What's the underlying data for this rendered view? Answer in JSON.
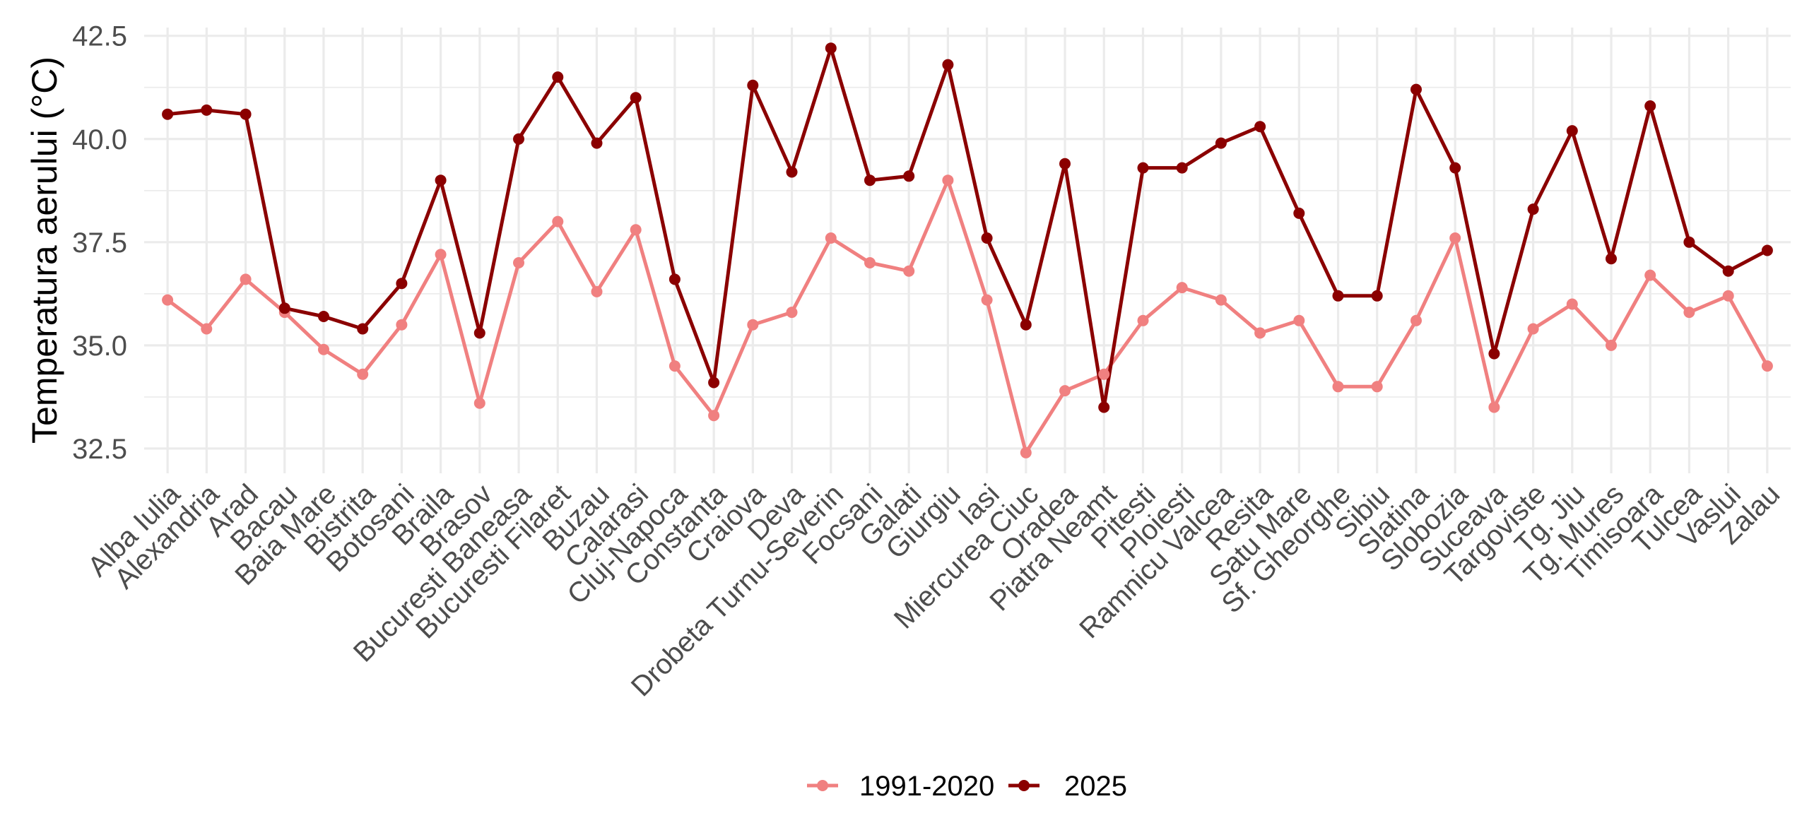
{
  "chart_data": {
    "type": "line",
    "ylabel": "Temperatura aerului (°C)",
    "ylim": [
      31.9,
      42.7
    ],
    "yticks": [
      32.5,
      35.0,
      37.5,
      40.0,
      42.5
    ],
    "ytick_labels": [
      "32.5",
      "35.0",
      "37.5",
      "40.0",
      "42.5"
    ],
    "grid": true,
    "legend": "bottom",
    "categories": [
      "Alba Iulia",
      "Alexandria",
      "Arad",
      "Bacau",
      "Baia Mare",
      "Bistrita",
      "Botosani",
      "Braila",
      "Brasov",
      "Bucuresti Baneasa",
      "Bucuresti Filaret",
      "Buzau",
      "Calarasi",
      "Cluj-Napoca",
      "Constanta",
      "Craiova",
      "Deva",
      "Drobeta Turnu-Severin",
      "Focsani",
      "Galati",
      "Giurgiu",
      "Iasi",
      "Miercurea Ciuc",
      "Oradea",
      "Piatra Neamt",
      "Pitesti",
      "Ploiesti",
      "Ramnicu Valcea",
      "Resita",
      "Satu Mare",
      "Sf. Gheorghe",
      "Sibiu",
      "Slatina",
      "Slobozia",
      "Suceava",
      "Targoviste",
      "Tg. Jiu",
      "Tg. Mures",
      "Timisoara",
      "Tulcea",
      "Vaslui",
      "Zalau"
    ],
    "series": [
      {
        "name": "1991-2020",
        "color": "#F08080",
        "values": [
          36.1,
          35.4,
          36.6,
          35.8,
          34.9,
          34.3,
          35.5,
          37.2,
          33.6,
          37.0,
          38.0,
          36.3,
          37.8,
          34.5,
          33.3,
          35.5,
          35.8,
          37.6,
          37.0,
          36.8,
          39.0,
          36.1,
          32.4,
          33.9,
          34.3,
          35.6,
          36.4,
          36.1,
          35.3,
          35.6,
          34.0,
          34.0,
          35.6,
          37.6,
          33.5,
          35.4,
          36.0,
          35.0,
          36.7,
          35.8,
          36.2,
          34.5
        ]
      },
      {
        "name": "2025",
        "color": "#8B0000",
        "values": [
          40.6,
          40.7,
          40.6,
          35.9,
          35.7,
          35.4,
          36.5,
          39.0,
          35.3,
          40.0,
          41.5,
          39.9,
          41.0,
          36.6,
          34.1,
          41.3,
          39.2,
          42.2,
          39.0,
          39.1,
          41.8,
          37.6,
          35.5,
          39.4,
          33.5,
          39.3,
          39.3,
          39.9,
          40.3,
          38.2,
          36.2,
          36.2,
          41.2,
          39.3,
          34.8,
          38.3,
          40.2,
          37.1,
          40.8,
          37.5,
          36.8,
          37.3
        ]
      }
    ]
  }
}
